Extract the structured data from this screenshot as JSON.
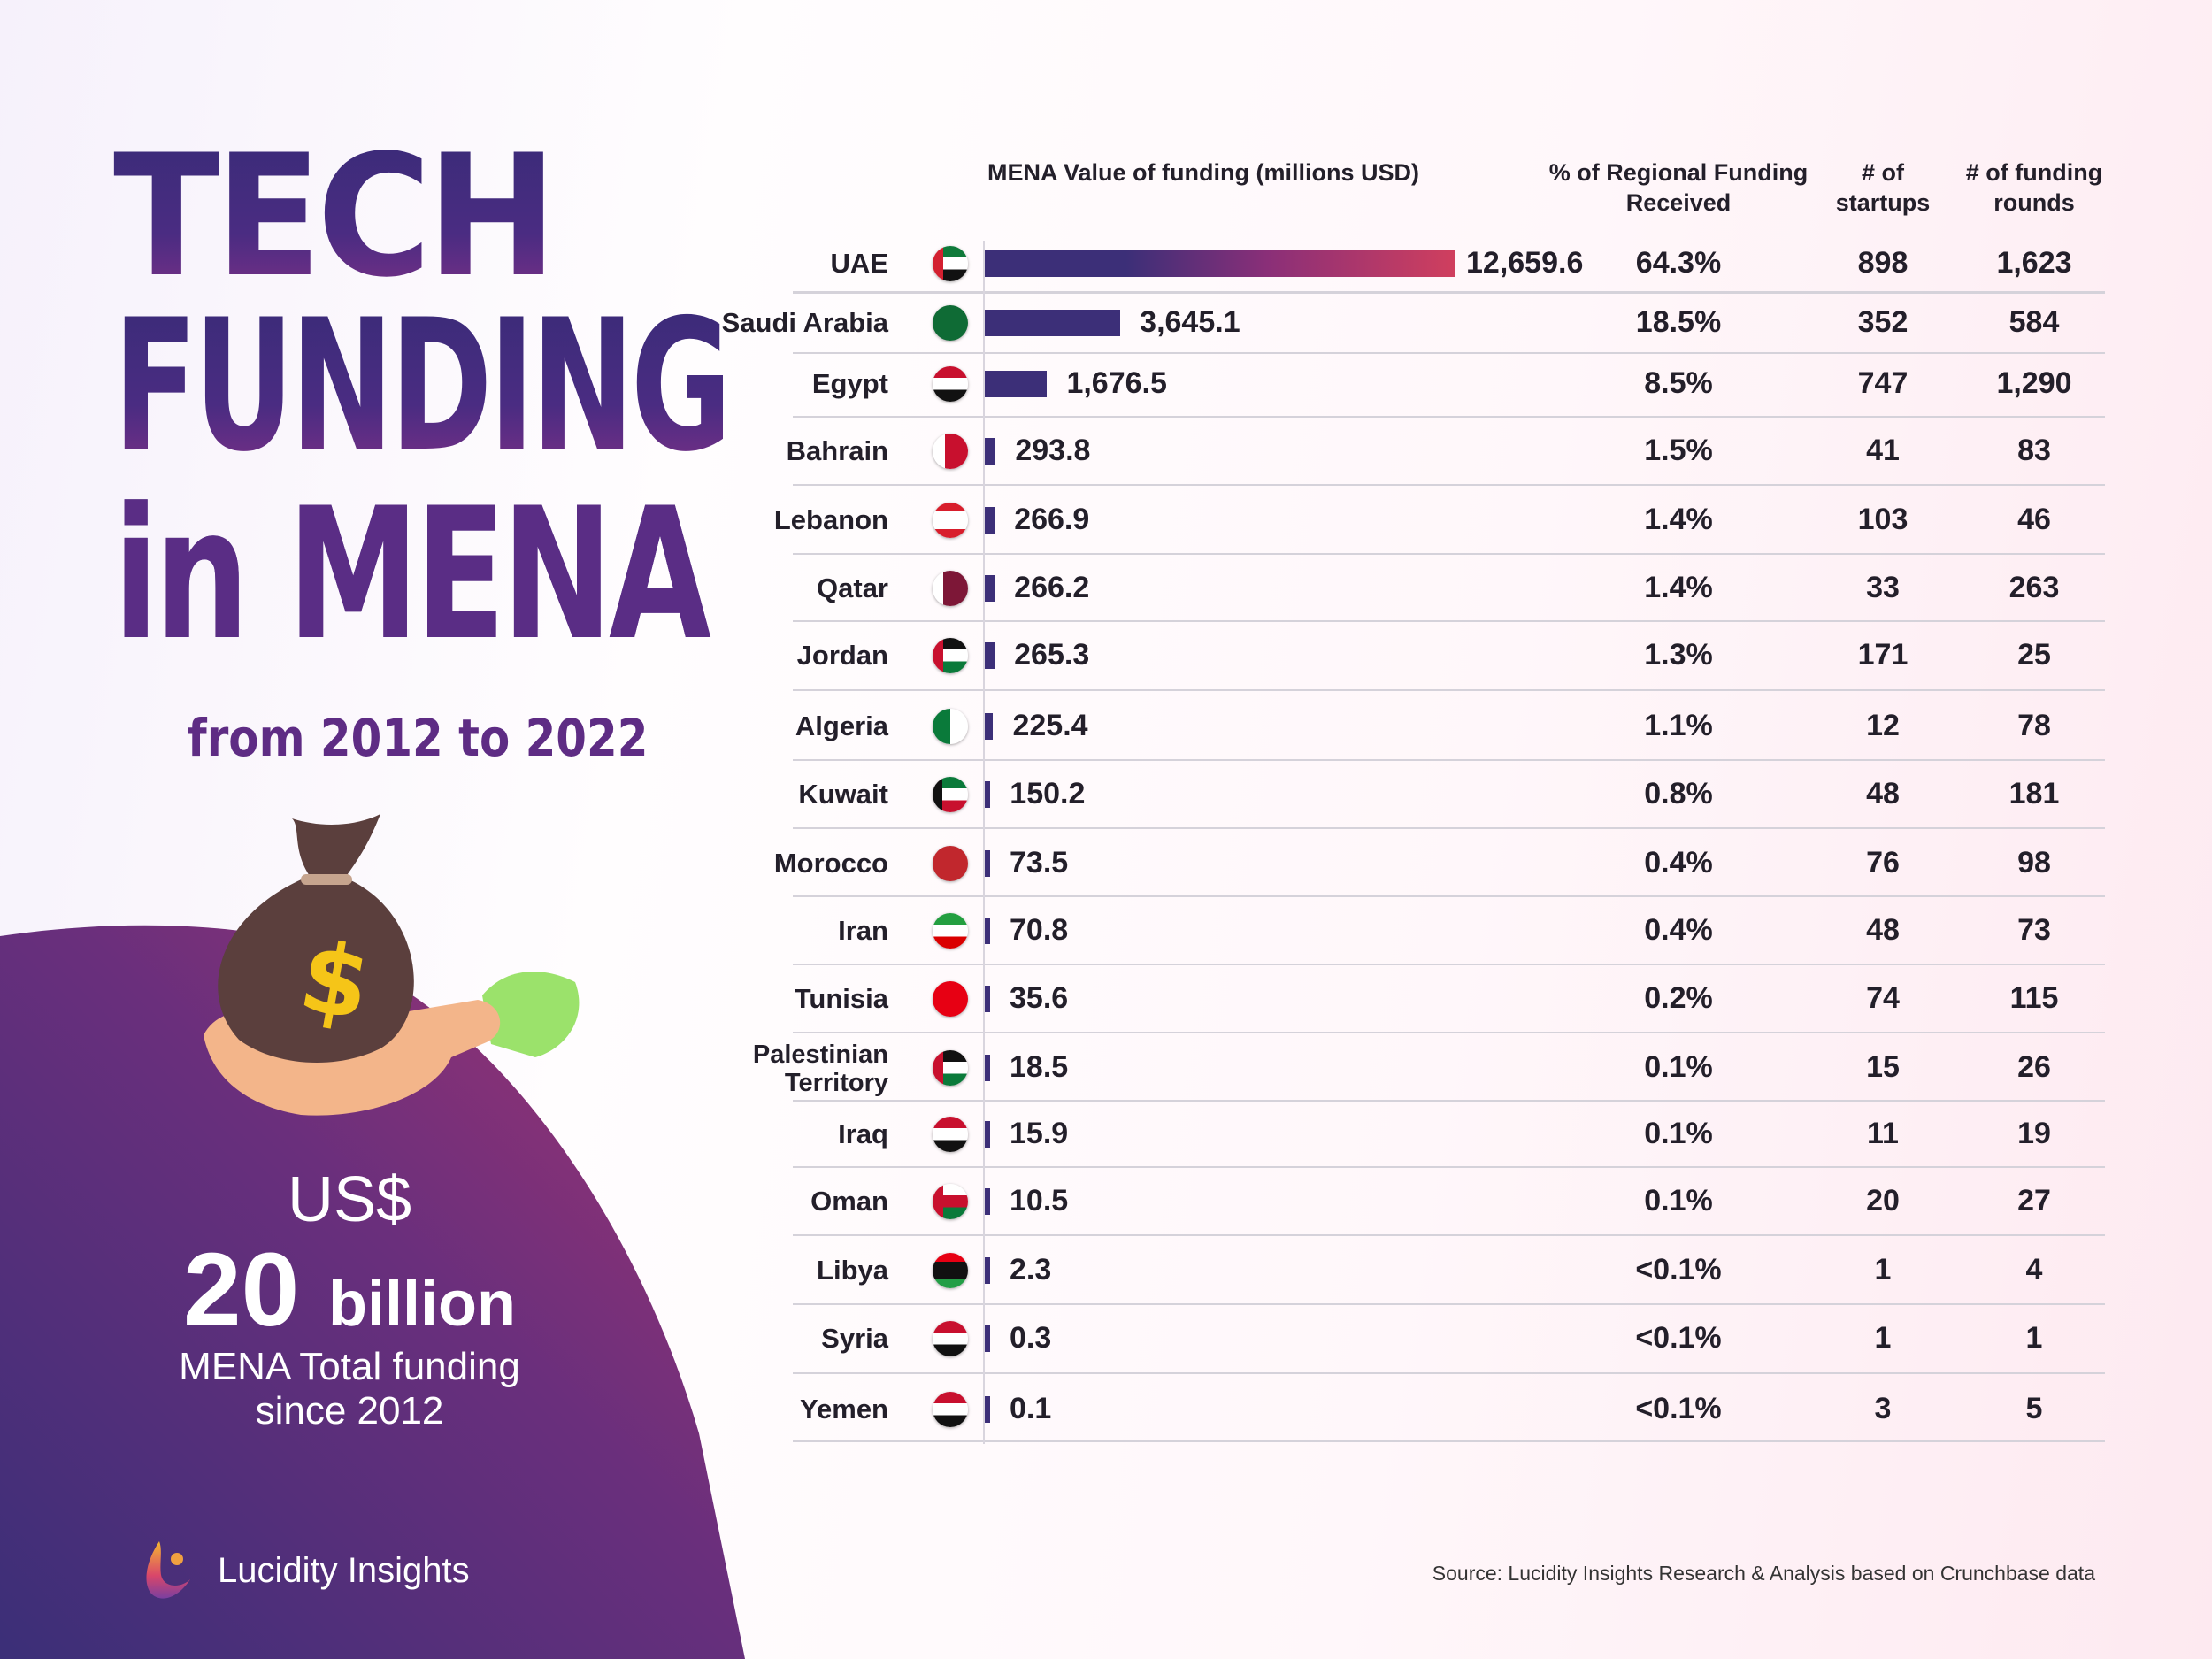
{
  "title": {
    "line1": "TECH",
    "line2": "FUNDING",
    "line3": "in MENA",
    "subtitle": "from 2012 to 2022"
  },
  "stat": {
    "currency": "US$",
    "amount": "20",
    "unit": "billion",
    "caption_line1": "MENA Total funding",
    "caption_line2": "since 2012"
  },
  "brand": "Lucidity Insights",
  "source": "Source: Lucidity Insights Research & Analysis based on Crunchbase data",
  "colors": {
    "bar": "#3c2f78",
    "bar_top_gradient_end": "#d03f5e",
    "panel_start": "#3b2f78",
    "panel_end": "#9a3272"
  },
  "chart_data": {
    "type": "table",
    "columns": {
      "value": "MENA Value of funding  (millions USD)",
      "share_line1": "% of Regional Funding",
      "share_line2": "Received",
      "startups_line1": "# of",
      "startups_line2": "startups",
      "rounds_line1": "# of funding",
      "rounds_line2": "rounds"
    },
    "rows": [
      {
        "country": "UAE",
        "value": 12659.6,
        "value_label": "12,659.6",
        "share": "64.3%",
        "startups": "898",
        "rounds": "1,623",
        "flag": "uae"
      },
      {
        "country": "Saudi Arabia",
        "value": 3645.1,
        "value_label": "3,645.1",
        "share": "18.5%",
        "startups": "352",
        "rounds": "584",
        "flag": "saudi"
      },
      {
        "country": "Egypt",
        "value": 1676.5,
        "value_label": "1,676.5",
        "share": "8.5%",
        "startups": "747",
        "rounds": "1,290",
        "flag": "egypt"
      },
      {
        "country": "Bahrain",
        "value": 293.8,
        "value_label": "293.8",
        "share": "1.5%",
        "startups": "41",
        "rounds": "83",
        "flag": "bahrain"
      },
      {
        "country": "Lebanon",
        "value": 266.9,
        "value_label": "266.9",
        "share": "1.4%",
        "startups": "103",
        "rounds": "46",
        "flag": "lebanon"
      },
      {
        "country": "Qatar",
        "value": 266.2,
        "value_label": "266.2",
        "share": "1.4%",
        "startups": "33",
        "rounds": "263",
        "flag": "qatar"
      },
      {
        "country": "Jordan",
        "value": 265.3,
        "value_label": "265.3",
        "share": "1.3%",
        "startups": "171",
        "rounds": "25",
        "flag": "jordan"
      },
      {
        "country": "Algeria",
        "value": 225.4,
        "value_label": "225.4",
        "share": "1.1%",
        "startups": "12",
        "rounds": "78",
        "flag": "algeria"
      },
      {
        "country": "Kuwait",
        "value": 150.2,
        "value_label": "150.2",
        "share": "0.8%",
        "startups": "48",
        "rounds": "181",
        "flag": "kuwait"
      },
      {
        "country": "Morocco",
        "value": 73.5,
        "value_label": "73.5",
        "share": "0.4%",
        "startups": "76",
        "rounds": "98",
        "flag": "morocco"
      },
      {
        "country": "Iran",
        "value": 70.8,
        "value_label": "70.8",
        "share": "0.4%",
        "startups": "48",
        "rounds": "73",
        "flag": "iran"
      },
      {
        "country": "Tunisia",
        "value": 35.6,
        "value_label": "35.6",
        "share": "0.2%",
        "startups": "74",
        "rounds": "115",
        "flag": "tunisia"
      },
      {
        "country": "Palestinian Territory",
        "value": 18.5,
        "value_label": "18.5",
        "share": "0.1%",
        "startups": "15",
        "rounds": "26",
        "flag": "palestine"
      },
      {
        "country": "Iraq",
        "value": 15.9,
        "value_label": "15.9",
        "share": "0.1%",
        "startups": "11",
        "rounds": "19",
        "flag": "iraq"
      },
      {
        "country": "Oman",
        "value": 10.5,
        "value_label": "10.5",
        "share": "0.1%",
        "startups": "20",
        "rounds": "27",
        "flag": "oman"
      },
      {
        "country": "Libya",
        "value": 2.3,
        "value_label": "2.3",
        "share": "<0.1%",
        "startups": "1",
        "rounds": "4",
        "flag": "libya"
      },
      {
        "country": "Syria",
        "value": 0.3,
        "value_label": "0.3",
        "share": "<0.1%",
        "startups": "1",
        "rounds": "1",
        "flag": "syria"
      },
      {
        "country": "Yemen",
        "value": 0.1,
        "value_label": "0.1",
        "share": "<0.1%",
        "startups": "3",
        "rounds": "5",
        "flag": "yemen"
      }
    ]
  }
}
